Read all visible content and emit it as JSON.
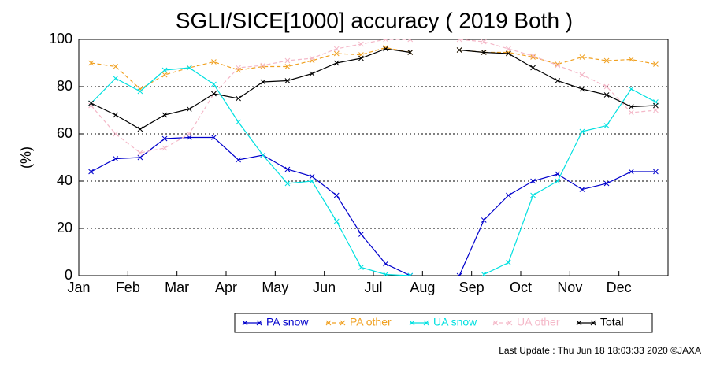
{
  "chart_data": {
    "type": "line",
    "title": "SGLI/SICE[1000] accuracy ( 2019 Both )",
    "y_label": "(%)",
    "footer": "Last Update : Thu Jun 18 18:03:33 2020 ©JAXA",
    "x": [
      0.25,
      0.75,
      1.25,
      1.75,
      2.25,
      2.75,
      3.25,
      3.75,
      4.25,
      4.75,
      5.25,
      5.75,
      6.25,
      6.75,
      7.25,
      7.75,
      8.25,
      8.75,
      9.25,
      9.75,
      10.25,
      10.75,
      11.25,
      11.75
    ],
    "xlim": [
      0,
      12
    ],
    "xticks": [
      {
        "value": 0,
        "label": "Jan"
      },
      {
        "value": 1,
        "label": "Feb"
      },
      {
        "value": 2,
        "label": "Mar"
      },
      {
        "value": 3,
        "label": "Apr"
      },
      {
        "value": 4,
        "label": "May"
      },
      {
        "value": 5,
        "label": "Jun"
      },
      {
        "value": 6,
        "label": "Jul"
      },
      {
        "value": 7,
        "label": "Aug"
      },
      {
        "value": 8,
        "label": "Sep"
      },
      {
        "value": 9,
        "label": "Oct"
      },
      {
        "value": 10,
        "label": "Nov"
      },
      {
        "value": 11,
        "label": "Dec"
      }
    ],
    "ylim": [
      0,
      100
    ],
    "yticks": [
      0,
      20,
      40,
      60,
      80,
      100
    ],
    "grid": true,
    "legend": "bottom",
    "series": [
      {
        "name": "PA snow",
        "color": "#0000cc",
        "dashed": false,
        "values": [
          44,
          49.5,
          50,
          58,
          58.5,
          58.5,
          49,
          51,
          45,
          42,
          34,
          17.5,
          5,
          0,
          null,
          0,
          23.5,
          34,
          40,
          43,
          36.5,
          39,
          44,
          44
        ]
      },
      {
        "name": "PA other",
        "color": "#f0a020",
        "dashed": true,
        "values": [
          90,
          88.5,
          79,
          85,
          88,
          90.5,
          87,
          88.5,
          88.5,
          91,
          94,
          93.5,
          96.5,
          94.5,
          null,
          95.5,
          94.5,
          94.5,
          92.5,
          89.5,
          92.5,
          91,
          91.5,
          89.5
        ]
      },
      {
        "name": "UA snow",
        "color": "#00e0e0",
        "dashed": false,
        "values": [
          73,
          83.5,
          78,
          87,
          88,
          81,
          65,
          51,
          39,
          40,
          23,
          3.5,
          0.5,
          0,
          null,
          null,
          0.5,
          5.5,
          34,
          40,
          61,
          63.5,
          79,
          73.5
        ]
      },
      {
        "name": "UA other",
        "color": "#f4b8c8",
        "dashed": true,
        "values": [
          72,
          60,
          52,
          54,
          60,
          77,
          88,
          89,
          91,
          92,
          96,
          98,
          100,
          100,
          null,
          100,
          99,
          96,
          93,
          89,
          85,
          80,
          69,
          70
        ]
      },
      {
        "name": "Total",
        "color": "#000000",
        "dashed": false,
        "values": [
          73,
          68,
          62,
          68,
          70.5,
          77,
          75,
          82,
          82.5,
          85.5,
          90,
          92,
          96,
          94.5,
          null,
          95.5,
          94.5,
          94,
          88,
          82.5,
          79,
          76.5,
          71.5,
          72
        ]
      }
    ]
  }
}
